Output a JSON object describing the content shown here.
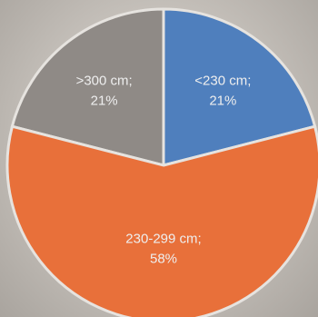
{
  "chart_data": {
    "type": "pie",
    "title": "",
    "categories": [
      ">300 cm",
      "<230 cm",
      "230-299 cm"
    ],
    "values": [
      21,
      21,
      58
    ],
    "labels": [
      {
        "category": ">300 cm;",
        "value": "21%"
      },
      {
        "category": "<230 cm;",
        "value": "21%"
      },
      {
        "category": "230-299 cm;",
        "value": "58%"
      }
    ],
    "colors": [
      "#8f8a86",
      "#4f7fbd",
      "#e8703a"
    ],
    "legend": "none"
  }
}
